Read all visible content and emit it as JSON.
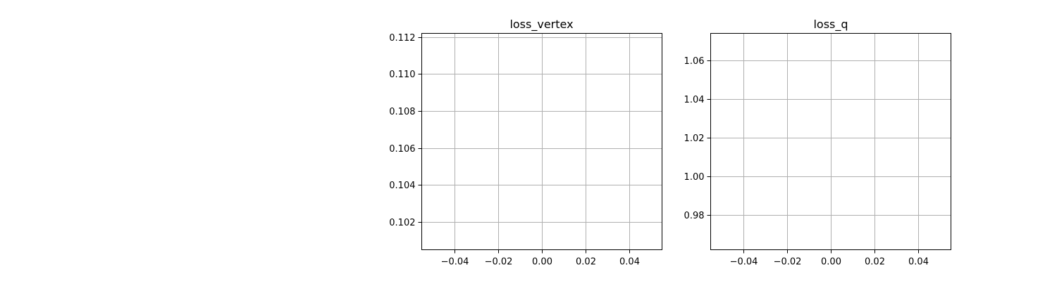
{
  "chart_data": [
    {
      "type": "line",
      "title": "loss_vertex",
      "xlabel": "",
      "ylabel": "",
      "x": [],
      "series": [],
      "xlim": [
        -0.055,
        0.055
      ],
      "ylim": [
        0.1005,
        0.1122
      ],
      "x_ticks": [
        -0.04,
        -0.02,
        0.0,
        0.02,
        0.04
      ],
      "x_tick_labels": [
        "−0.04",
        "−0.02",
        "0.00",
        "0.02",
        "0.04"
      ],
      "y_ticks": [
        0.102,
        0.104,
        0.106,
        0.108,
        0.11,
        0.112
      ],
      "y_tick_labels": [
        "0.102",
        "0.104",
        "0.106",
        "0.108",
        "0.110",
        "0.112"
      ],
      "grid": true
    },
    {
      "type": "line",
      "title": "loss_q",
      "xlabel": "",
      "ylabel": "",
      "x": [],
      "series": [],
      "xlim": [
        -0.055,
        0.055
      ],
      "ylim": [
        0.962,
        1.074
      ],
      "x_ticks": [
        -0.04,
        -0.02,
        0.0,
        0.02,
        0.04
      ],
      "x_tick_labels": [
        "−0.04",
        "−0.02",
        "0.00",
        "0.02",
        "0.04"
      ],
      "y_ticks": [
        0.98,
        1.0,
        1.02,
        1.04,
        1.06
      ],
      "y_tick_labels": [
        "0.98",
        "1.00",
        "1.02",
        "1.04",
        "1.06"
      ],
      "grid": true
    }
  ],
  "colors": {
    "grid": "#b0b0b0",
    "frame": "#000000",
    "background": "#ffffff"
  }
}
